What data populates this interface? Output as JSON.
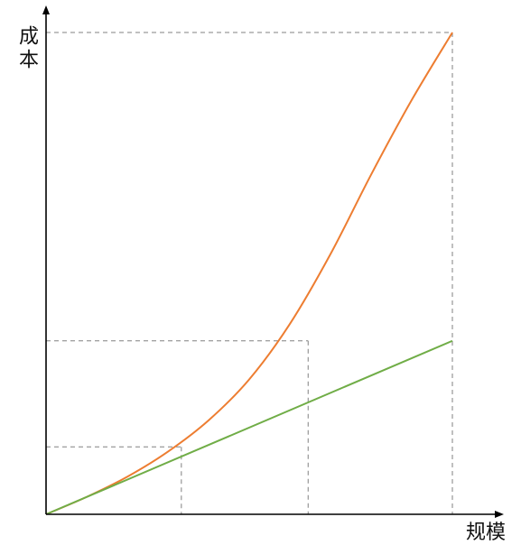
{
  "chart_data": {
    "type": "line",
    "xlabel": "规模",
    "ylabel": "成本",
    "xlim": [
      0,
      10
    ],
    "ylim": [
      0,
      10
    ],
    "grid": false,
    "series": [
      {
        "color": "#ED7D31",
        "x": [
          0,
          1,
          2,
          3,
          4,
          5,
          6,
          7,
          8,
          9,
          10
        ],
        "y": [
          0,
          0.36,
          0.78,
          1.3,
          1.95,
          2.8,
          3.95,
          5.4,
          7.05,
          8.6,
          10
        ]
      },
      {
        "color": "#70AD47",
        "x": [
          0,
          10
        ],
        "y": [
          0,
          3.6
        ]
      }
    ],
    "reference_points": [
      {
        "x": 3.33,
        "y": 1.4
      },
      {
        "x": 6.45,
        "y": 3.6
      },
      {
        "x": 10,
        "y": 10
      }
    ],
    "axis_color": "#000000",
    "guide_color": "#808080"
  }
}
